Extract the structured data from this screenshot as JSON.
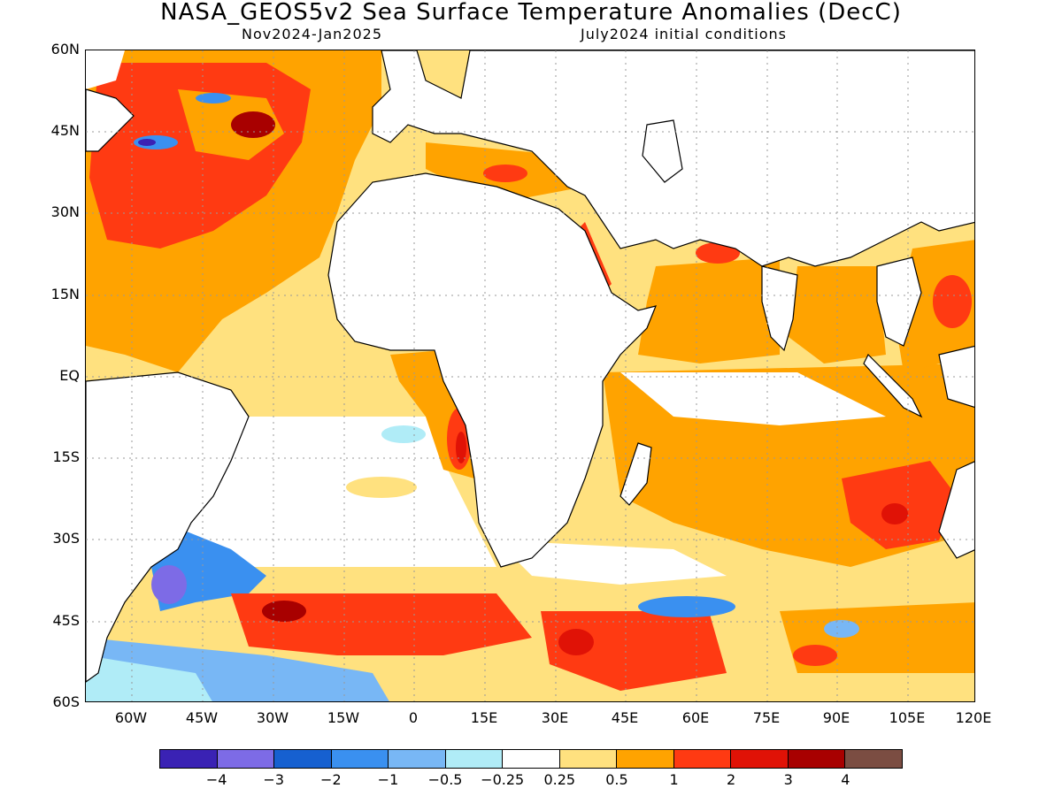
{
  "title": "NASA_GEOS5v2 Sea Surface Temperature Anomalies (DecC)",
  "subtitle_left": "Nov2024-Jan2025",
  "subtitle_right": "July2024 initial conditions",
  "lat_labels": [
    "60N",
    "45N",
    "30N",
    "15N",
    "EQ",
    "15S",
    "30S",
    "45S",
    "60S"
  ],
  "lon_labels": [
    "60W",
    "45W",
    "30W",
    "15W",
    "0",
    "15E",
    "30E",
    "45E",
    "60E",
    "75E",
    "90E",
    "105E",
    "120E"
  ],
  "colorbar": {
    "colors": [
      "#3a22b4",
      "#7d6be6",
      "#1660d0",
      "#3a90f0",
      "#78b7f5",
      "#b0ecf7",
      "#ffffff",
      "#ffe17f",
      "#ffa300",
      "#ff3a12",
      "#e01206",
      "#a80000",
      "#7b4d42"
    ],
    "labels": [
      "-4",
      "-3",
      "-2",
      "-1",
      "-0.5",
      "-0.25",
      "0.25",
      "0.5",
      "1",
      "2",
      "3",
      "4"
    ]
  }
}
